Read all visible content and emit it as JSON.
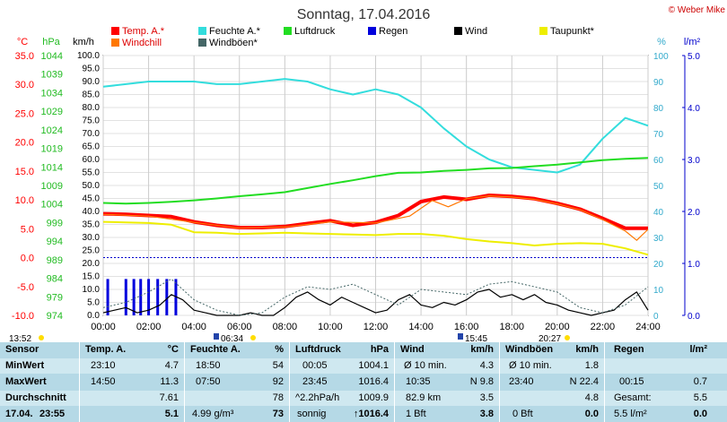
{
  "title": "Sonntag, 17.04.2016",
  "copyright": "© Weber Mike",
  "unit_labels": {
    "temp": "°C",
    "pressure": "hPa",
    "wind": "km/h",
    "humidity": "%",
    "rain": "l/m²"
  },
  "legend": [
    {
      "label": "Temp. A.*",
      "color": "#ff0000"
    },
    {
      "label": "Feuchte A.*",
      "color": "#33dddd"
    },
    {
      "label": "Luftdruck",
      "color": "#22dd22"
    },
    {
      "label": "Regen",
      "color": "#0000dd"
    },
    {
      "label": "Wind",
      "color": "#000000"
    },
    {
      "label": "Taupunkt*",
      "color": "#eeee00"
    },
    {
      "label": "Windchill",
      "color": "#ff7700"
    },
    {
      "label": "Windböen*",
      "color": "#446666"
    }
  ],
  "events": {
    "time_left": "13:52",
    "sunrise": "06:34",
    "noon": "15:45",
    "sunset": "20:27"
  },
  "chart_data": {
    "type": "line",
    "x_ticks": [
      "00:00",
      "02:00",
      "04:00",
      "06:00",
      "08:00",
      "10:00",
      "12:00",
      "14:00",
      "16:00",
      "18:00",
      "20:00",
      "22:00",
      "24:00"
    ],
    "axes": {
      "temp": {
        "label": "°C",
        "min": -10,
        "max": 35,
        "ticks": [
          -10,
          -5,
          0,
          5,
          10,
          15,
          20,
          25,
          30,
          35
        ]
      },
      "pressure": {
        "label": "hPa",
        "min": 974,
        "max": 1044,
        "ticks": [
          974,
          979,
          984,
          989,
          994,
          999,
          1004,
          1009,
          1014,
          1019,
          1024,
          1029,
          1034,
          1039,
          1044
        ]
      },
      "wind": {
        "label": "km/h",
        "min": 0,
        "max": 100,
        "step": 5
      },
      "humidity": {
        "label": "%",
        "min": 0,
        "max": 100,
        "ticks": [
          0,
          10,
          20,
          30,
          40,
          50,
          60,
          70,
          80,
          90,
          100
        ]
      },
      "rain": {
        "label": "l/m²",
        "min": 0,
        "max": 5,
        "ticks": [
          0.0,
          1.0,
          2.0,
          3.0,
          4.0,
          5.0
        ]
      }
    },
    "series": [
      {
        "name": "Feuchte A.*",
        "axis": "humidity",
        "color": "#33dddd",
        "x": [
          0,
          1,
          2,
          3,
          4,
          5,
          6,
          7,
          8,
          9,
          10,
          11,
          12,
          13,
          14,
          15,
          16,
          17,
          18,
          19,
          20,
          21,
          22,
          23,
          24
        ],
        "y": [
          88,
          89,
          90,
          90,
          90,
          89,
          89,
          90,
          91,
          90,
          87,
          85,
          87,
          85,
          80,
          72,
          65,
          60,
          57,
          56,
          55,
          58,
          68,
          76,
          73
        ]
      },
      {
        "name": "Temp. A.*",
        "axis": "temp",
        "color": "#ff0000",
        "x": [
          0,
          1,
          2,
          3,
          4,
          5,
          6,
          7,
          8,
          9,
          10,
          11,
          12,
          13,
          14,
          15,
          16,
          17,
          18,
          19,
          20,
          21,
          22,
          23,
          24
        ],
        "y": [
          7.6,
          7.5,
          7.3,
          7.1,
          6.2,
          5.6,
          5.2,
          5.2,
          5.4,
          5.9,
          6.4,
          5.6,
          6.1,
          7.3,
          9.7,
          10.5,
          10.1,
          10.8,
          10.6,
          10.2,
          9.4,
          8.4,
          6.8,
          5.1,
          5.1
        ]
      },
      {
        "name": "Windchill",
        "axis": "temp",
        "color": "#ff7700",
        "x": [
          0,
          2,
          4,
          6,
          8,
          10,
          12,
          13.5,
          14.5,
          15.2,
          16,
          17,
          18,
          19,
          20,
          21,
          22,
          23,
          23.5,
          24
        ],
        "y": [
          7.5,
          7.2,
          6.1,
          5.1,
          5.3,
          6.2,
          6.0,
          7.2,
          9.9,
          8.8,
          10.2,
          10.7,
          10.5,
          10.1,
          9.3,
          8.3,
          6.6,
          4.6,
          3.0,
          4.9
        ]
      },
      {
        "name": "Luftdruck",
        "axis": "pressure",
        "color": "#22dd22",
        "x": [
          0,
          1,
          2,
          3,
          4,
          5,
          6,
          7,
          8,
          9,
          10,
          11,
          12,
          13,
          14,
          15,
          16,
          17,
          18,
          19,
          20,
          21,
          22,
          23,
          24
        ],
        "y": [
          1004.3,
          1004.1,
          1004.3,
          1004.6,
          1005.0,
          1005.5,
          1006.1,
          1006.6,
          1007.2,
          1008.3,
          1009.4,
          1010.4,
          1011.5,
          1012.4,
          1012.5,
          1012.9,
          1013.2,
          1013.6,
          1013.7,
          1014.2,
          1014.6,
          1015.2,
          1015.8,
          1016.2,
          1016.4
        ]
      },
      {
        "name": "Taupunkt*",
        "axis": "temp",
        "color": "#eeee00",
        "x": [
          0,
          1,
          2,
          3,
          4,
          5,
          6,
          7,
          8,
          9,
          10,
          11,
          12,
          13,
          14,
          15,
          16,
          17,
          18,
          19,
          20,
          21,
          22,
          23,
          24
        ],
        "y": [
          6.2,
          6.1,
          6.0,
          5.7,
          4.4,
          4.3,
          4.1,
          4.2,
          4.3,
          4.2,
          4.1,
          4.0,
          3.9,
          4.1,
          4.1,
          3.8,
          3.2,
          2.8,
          2.5,
          2.1,
          2.4,
          2.5,
          2.4,
          1.6,
          0.5
        ]
      },
      {
        "name": "Wind",
        "axis": "wind",
        "color": "#000000",
        "x": [
          0,
          0.5,
          1,
          1.5,
          2,
          2.5,
          3,
          3.5,
          4,
          4.5,
          5,
          5.5,
          6,
          6.5,
          7,
          7.5,
          8,
          8.5,
          9,
          9.5,
          10,
          10.5,
          11,
          11.5,
          12,
          12.5,
          13,
          13.5,
          14,
          14.5,
          15,
          15.5,
          16,
          16.5,
          17,
          17.5,
          18,
          18.5,
          19,
          19.5,
          20,
          20.5,
          21,
          21.5,
          22,
          22.5,
          23,
          23.5,
          24
        ],
        "y": [
          1,
          2,
          3,
          1,
          2,
          4,
          8,
          6,
          2,
          1,
          0,
          0,
          0,
          1,
          0,
          0,
          3,
          7,
          9,
          6,
          4,
          7,
          5,
          3,
          1,
          2,
          6,
          8,
          4,
          3,
          5,
          4,
          6,
          9,
          10,
          7,
          8,
          6,
          8,
          5,
          4,
          2,
          1,
          0,
          1,
          2,
          6,
          9,
          2
        ]
      },
      {
        "name": "Windböen*",
        "axis": "wind",
        "color": "#446666",
        "dashed": true,
        "x": [
          0,
          1,
          2,
          3,
          4,
          5,
          6,
          7,
          8,
          9,
          10,
          11,
          12,
          13,
          14,
          15,
          16,
          17,
          18,
          19,
          20,
          21,
          22,
          23,
          24
        ],
        "y": [
          3,
          5,
          9,
          14,
          6,
          2,
          0,
          1,
          7,
          11,
          10,
          12,
          8,
          4,
          10,
          9,
          8,
          12,
          13,
          11,
          9,
          3,
          1,
          4,
          11
        ]
      }
    ],
    "rain_bars": {
      "name": "Regen",
      "axis": "rain",
      "color": "#0000dd",
      "x": [
        0.2,
        1.0,
        1.35,
        1.65,
        2.0,
        2.4,
        2.8,
        3.2
      ],
      "values": [
        0.7,
        0.7,
        0.7,
        0.7,
        0.7,
        0.7,
        0.7,
        0.7
      ]
    },
    "reference_line": {
      "axis": "temp",
      "value": 0
    }
  },
  "stats": {
    "sensor": {
      "title": "Sensor",
      "rows": [
        "MinWert",
        "MaxWert",
        "Durchschnitt"
      ],
      "date": "17.04.",
      "time": "23:55"
    },
    "temp": {
      "title": "Temp. A.",
      "unit": "°C",
      "min_time": "23:10",
      "min": "4.7",
      "max_time": "14:50",
      "max": "11.3",
      "avg": "7.61",
      "current": "5.1"
    },
    "humidity": {
      "title": "Feuchte A.",
      "unit": "%",
      "min_time": "18:50",
      "min": "54",
      "max_time": "07:50",
      "max": "92",
      "avg": "78",
      "abs": "4.99 g/m³",
      "current": "73"
    },
    "pressure": {
      "title": "Luftdruck",
      "unit": "hPa",
      "min_time": "00:05",
      "min": "1004.1",
      "max_time": "23:45",
      "max": "1016.4",
      "trend": "^2.2hPa/h",
      "avg": "1009.9",
      "forecast": "sonnig",
      "current": "↑1016.4"
    },
    "wind": {
      "title": "Wind",
      "unit": "km/h",
      "r1_label": "Ø 10 min.",
      "r1_value": "4.3",
      "r2_time": "10:35",
      "r2_value": "N 9.8",
      "distance": "82.9 km",
      "avg": "3.5",
      "bft": "1 Bft",
      "current": "3.8"
    },
    "gust": {
      "title": "Windböen",
      "unit": "km/h",
      "r1_label": "Ø 10 min.",
      "r1_value": "1.8",
      "r2_time": "23:40",
      "r2_value": "N 22.4",
      "avg": "4.8",
      "bft": "0 Bft",
      "current": "0.0"
    },
    "rain": {
      "title": "Regen",
      "unit": "l/m²",
      "r2_time": "00:15",
      "r2_value": "0.7",
      "total_label": "Gesamt:",
      "total": "5.5",
      "daily": "5.5 l/m²",
      "current": "0.0"
    }
  }
}
